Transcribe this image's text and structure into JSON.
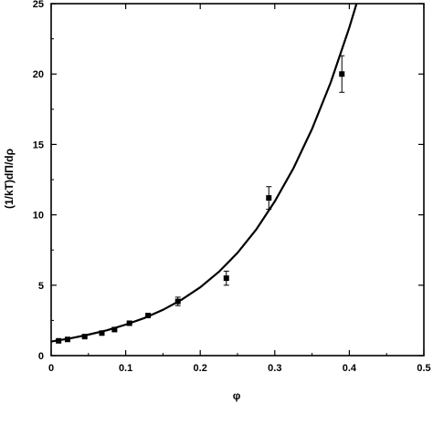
{
  "chart_data": {
    "type": "scatter",
    "title": "",
    "xlabel": "φ",
    "ylabel": "(1/kT)dΠ/dρ",
    "xlim": [
      0,
      0.5
    ],
    "ylim": [
      0,
      25
    ],
    "xticks": [
      0,
      0.1,
      0.2,
      0.3,
      0.4,
      0.5
    ],
    "xtick_labels": [
      "0",
      "0.1",
      "0.2",
      "0.3",
      "0.4",
      "0.5"
    ],
    "yticks": [
      0,
      5,
      10,
      15,
      20,
      25
    ],
    "ytick_labels": [
      "0",
      "5",
      "10",
      "15",
      "20",
      "25"
    ],
    "grid": false,
    "series": [
      {
        "kind": "points_with_error_bars",
        "marker": "square",
        "color": "#000000",
        "x": [
          0.01,
          0.022,
          0.045,
          0.068,
          0.085,
          0.105,
          0.13,
          0.17,
          0.235,
          0.292,
          0.39
        ],
        "y": [
          1.05,
          1.15,
          1.35,
          1.6,
          1.85,
          2.3,
          2.85,
          3.85,
          5.5,
          11.2,
          20.0
        ],
        "yerr": [
          0.05,
          0.05,
          0.1,
          0.1,
          0.1,
          0.15,
          0.2,
          0.3,
          0.5,
          0.8,
          1.3
        ]
      },
      {
        "kind": "line",
        "color": "#000000",
        "x": [
          0,
          0.025,
          0.05,
          0.075,
          0.1,
          0.125,
          0.15,
          0.175,
          0.2,
          0.225,
          0.25,
          0.275,
          0.3,
          0.325,
          0.35,
          0.375,
          0.4,
          0.42
        ],
        "y": [
          1.0,
          1.22,
          1.49,
          1.8,
          2.2,
          2.67,
          3.25,
          3.97,
          4.85,
          5.95,
          7.3,
          8.95,
          10.95,
          13.3,
          16.1,
          19.4,
          23.3,
          26.8
        ]
      }
    ]
  }
}
